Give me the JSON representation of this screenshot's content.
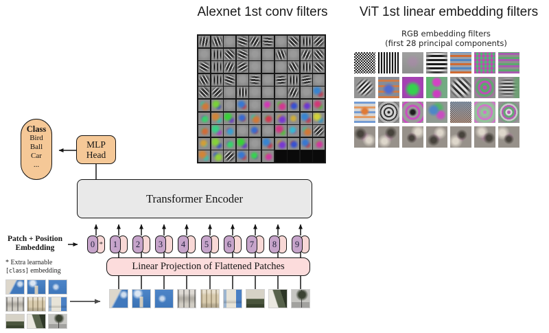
{
  "titles": {
    "alexnet": "Alexnet 1st conv filters",
    "vit": "ViT 1st linear embedding filters"
  },
  "vit_panel": {
    "subtitle_line1": "RGB embedding filters",
    "subtitle_line2": "(first 28 principal components)",
    "cells": [
      "ck",
      "vg",
      "pl",
      "hg",
      "hs",
      "pm",
      "hm",
      "dg",
      "bo",
      "gp",
      "mg",
      "dd",
      "mr",
      "ge",
      "ob",
      "rg",
      "md",
      "bg",
      "cf",
      "m2",
      "rc",
      "lb1",
      "lb2",
      "lb3",
      "lb4",
      "lb5",
      "lb6",
      "lb7"
    ]
  },
  "alexnet_panel": {
    "cells": [
      "g100",
      "g70",
      "p",
      "g20",
      "g120",
      "g5",
      "p",
      "g45",
      "g90",
      "g135",
      "p",
      "g90",
      "g45",
      "g25",
      "p",
      "p",
      "g70",
      "p",
      "g115",
      "g50",
      "g30",
      "g90",
      "g115",
      "g150",
      "p",
      "p",
      "p",
      "g60",
      "g90",
      "g45",
      "g60",
      "g90",
      "g20",
      "p",
      "g5",
      "p",
      "g175",
      "g90",
      "g170",
      "p",
      "g45",
      "g135",
      "p",
      "g90",
      "p",
      "p",
      "p",
      "g115",
      "p",
      "c210",
      "c25",
      "c95",
      "p",
      "c215",
      "p",
      "c310",
      "c325",
      "c230",
      "c260",
      "c335",
      "c140",
      "c30",
      "c120",
      "c220",
      "c25",
      "c350",
      "c265",
      "c45",
      "c210",
      "c60",
      "c20",
      "c150",
      "c200",
      "p",
      "c220",
      "p",
      "c330",
      "c190",
      "c25",
      "g135",
      "c40",
      "c90",
      "c140",
      "c120",
      "p",
      "c210",
      "c265",
      "c230",
      "c215",
      "c320",
      "c30",
      "c85",
      "g135",
      "c215",
      "c130",
      "c320",
      "k",
      "k",
      "k",
      "k"
    ]
  },
  "diagram": {
    "class_bubble": {
      "title": "Class",
      "items": [
        "Bird",
        "Ball",
        "Car",
        "..."
      ]
    },
    "mlp_head": {
      "line1": "MLP",
      "line2": "Head"
    },
    "encoder_label": "Transformer Encoder",
    "projection_label": "Linear Projection of Flattened Patches",
    "patch_position_label": {
      "line1": "Patch + Position",
      "line2": "Embedding"
    },
    "note": {
      "prefix": "* Extra learnable",
      "code": "[class]",
      "suffix": " embedding"
    },
    "tokens": [
      {
        "label": "0",
        "star": "*"
      },
      {
        "label": "1"
      },
      {
        "label": "2"
      },
      {
        "label": "3"
      },
      {
        "label": "4"
      },
      {
        "label": "5"
      },
      {
        "label": "6"
      },
      {
        "label": "7"
      },
      {
        "label": "8"
      },
      {
        "label": "9"
      }
    ],
    "patch_strip": [
      "sky-bldg",
      "sky-tower",
      "sky",
      "facade-gray",
      "facade-cream",
      "tower-sky",
      "facade-trees",
      "bldg-trees",
      "street"
    ],
    "image_grid": [
      "sky-bldg",
      "sky-tower",
      "sky",
      "facade-gray",
      "facade-cream",
      "tower-sky",
      "facade-trees",
      "bldg-trees",
      "street"
    ]
  },
  "colors": {
    "tan": "#f5c897",
    "purple_token": "#c6a4ca",
    "pink_token": "#f8d8d6",
    "pink_box": "#fcdcdc",
    "encoder_gray": "#e9e9e9"
  }
}
